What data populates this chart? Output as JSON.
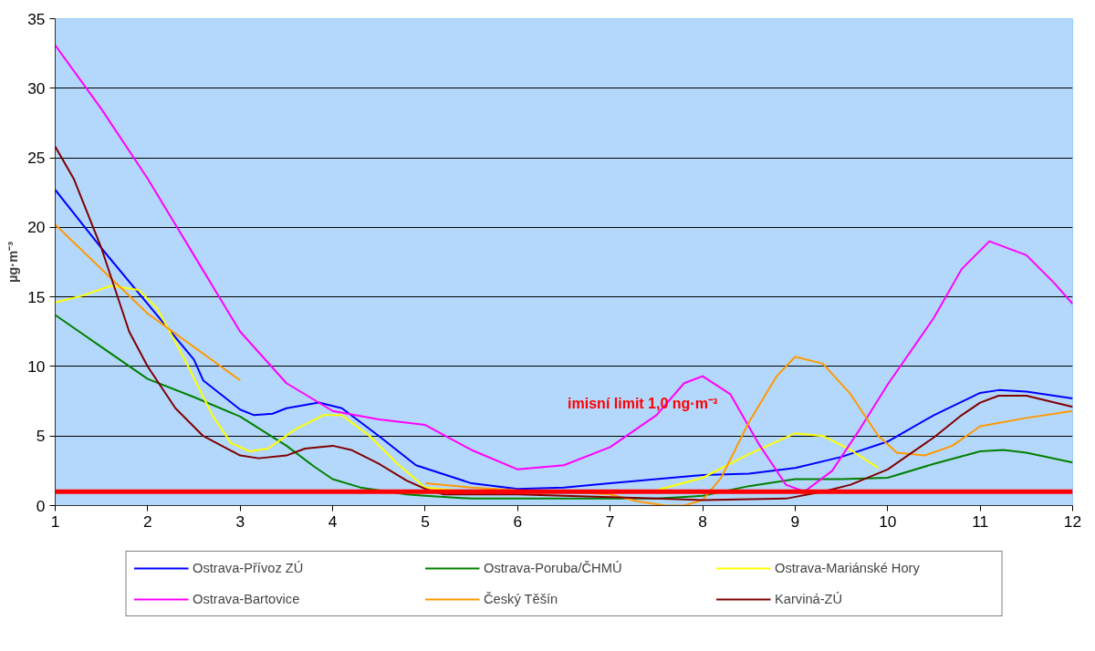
{
  "chart_data": {
    "type": "line",
    "ylabel": "µg·m⁻³",
    "xlim": [
      1,
      12
    ],
    "xticks": [
      1,
      2,
      3,
      4,
      5,
      6,
      7,
      8,
      9,
      10,
      11,
      12
    ],
    "ylim": [
      0,
      35
    ],
    "yticks": [
      0,
      5,
      10,
      15,
      20,
      25,
      30,
      35
    ],
    "grid": "y",
    "legend": "bottom",
    "marker": "none",
    "line_style": "solid",
    "ref_lines": [
      {
        "axis": "y",
        "value": 1,
        "label": "imisní limit 1,0 ng·m⁻³",
        "color": "#ff0000"
      }
    ],
    "series": [
      {
        "name": "Ostrava-Přívoz ZÚ",
        "color": "#0000ff",
        "x": [
          1,
          1.5,
          2,
          2.5,
          2.6,
          3,
          3.15,
          3.35,
          3.5,
          3.85,
          4.1,
          4.5,
          4.9,
          5.5,
          6,
          6.5,
          7,
          7.5,
          8,
          8.5,
          9,
          9.5,
          10,
          10.5,
          11,
          11.2,
          11.5,
          12
        ],
        "values": [
          22.7,
          18.5,
          14.5,
          10.5,
          9,
          6.9,
          6.5,
          6.6,
          7.0,
          7.4,
          7.0,
          5.0,
          2.9,
          1.6,
          1.2,
          1.3,
          1.6,
          1.9,
          2.2,
          2.3,
          2.7,
          3.5,
          4.6,
          6.5,
          8.1,
          8.3,
          8.2,
          7.7
        ]
      },
      {
        "name": "Ostrava-Poruba/ČHMÚ",
        "color": "#008000",
        "x": [
          1,
          1.5,
          2,
          2.5,
          3,
          3.5,
          3.8,
          4,
          4.3,
          4.8,
          5,
          5.5,
          6,
          6.5,
          7,
          7.5,
          8,
          8.5,
          9,
          9.5,
          10,
          10.5,
          11,
          11.25,
          11.5,
          12
        ],
        "values": [
          13.7,
          11.4,
          9.1,
          7.8,
          6.4,
          4.3,
          2.8,
          1.9,
          1.3,
          0.8,
          0.7,
          0.5,
          0.5,
          0.5,
          0.5,
          0.5,
          0.7,
          1.4,
          1.9,
          1.9,
          2.0,
          3.0,
          3.9,
          4.0,
          3.8,
          3.1
        ]
      },
      {
        "name": "Ostrava-Mariánské Hory",
        "color": "#ffff00",
        "x": [
          1,
          1.3,
          1.6,
          1.9,
          2.1,
          2.4,
          2.7,
          2.9,
          3.1,
          3.3,
          3.6,
          3.9,
          4.1,
          4.4,
          4.7,
          5,
          5.5,
          6,
          6.5,
          7,
          7.5,
          8,
          8.5,
          9,
          9.3,
          9.6,
          9.9
        ],
        "values": [
          14.6,
          15.1,
          15.8,
          15.5,
          14.2,
          10.5,
          6.5,
          4.5,
          3.9,
          4.1,
          5.5,
          6.5,
          6.5,
          5.0,
          3.0,
          1.3,
          1.0,
          null,
          null,
          0.9,
          1.1,
          2.0,
          3.7,
          5.2,
          5.0,
          4.0,
          2.7
        ]
      },
      {
        "name": "Ostrava-Bartovice",
        "color": "#ff00ff",
        "x": [
          1,
          1.5,
          2,
          2.5,
          3,
          3.5,
          4,
          4.5,
          5,
          5.5,
          6,
          6.5,
          7,
          7.5,
          7.8,
          8,
          8.3,
          8.6,
          8.9,
          9.1,
          9.4,
          9.7,
          10,
          10.5,
          10.8,
          11.1,
          11.5,
          11.8,
          12
        ],
        "values": [
          33.1,
          28.5,
          23.5,
          18.0,
          12.5,
          8.8,
          6.8,
          6.2,
          5.8,
          4.0,
          2.6,
          2.9,
          4.2,
          6.5,
          8.8,
          9.3,
          8.0,
          4.5,
          1.5,
          1.0,
          2.5,
          5.5,
          8.7,
          13.5,
          17.0,
          19.0,
          18.0,
          16.0,
          14.5
        ]
      },
      {
        "name": "Český Těšín",
        "color": "#ff9900",
        "x": [
          1,
          2,
          3,
          4,
          5,
          5.5,
          6,
          6.5,
          7,
          7.3,
          7.6,
          7.8,
          8,
          8.2,
          8.5,
          8.8,
          9,
          9.3,
          9.6,
          9.9,
          10.1,
          10.4,
          10.7,
          11,
          11.5,
          12
        ],
        "values": [
          20.2,
          13.8,
          9.0,
          null,
          1.6,
          1.3,
          1.1,
          1.0,
          0.8,
          0.3,
          0,
          0,
          0.4,
          2.0,
          6.0,
          9.3,
          10.7,
          10.2,
          8.0,
          5.0,
          3.8,
          3.6,
          4.3,
          5.7,
          6.3,
          6.8
        ]
      },
      {
        "name": "Karviná-ZÚ",
        "color": "#800000",
        "x": [
          1,
          1.2,
          1.5,
          1.8,
          2,
          2.3,
          2.6,
          3,
          3.2,
          3.5,
          3.7,
          4,
          4.2,
          4.5,
          4.8,
          5,
          5.2,
          6,
          7,
          7.5,
          8,
          8.9,
          9.3,
          9.6,
          10,
          10.5,
          10.8,
          11,
          11.2,
          11.5,
          12
        ],
        "values": [
          25.8,
          23.5,
          18.5,
          12.5,
          10.0,
          7.0,
          5.0,
          3.6,
          3.4,
          3.6,
          4.1,
          4.3,
          4.0,
          3.0,
          1.8,
          1.2,
          0.8,
          0.8,
          0.6,
          0.5,
          0.4,
          0.5,
          1.0,
          1.5,
          2.6,
          4.9,
          6.5,
          7.4,
          7.9,
          7.9,
          7.1
        ]
      }
    ]
  }
}
